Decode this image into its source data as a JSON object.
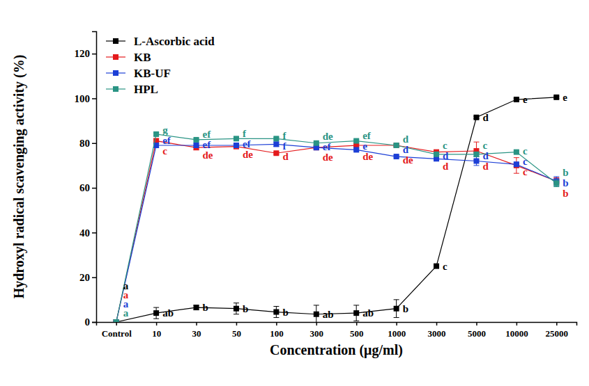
{
  "chart_data": {
    "type": "line",
    "x_label": "Concentration (μg/ml)",
    "y_label": "Hydroxyl radical scavenging activity (%)",
    "categories": [
      "Control",
      "10",
      "30",
      "50",
      "100",
      "300",
      "500",
      "1000",
      "3000",
      "5000",
      "10000",
      "25000"
    ],
    "ylim": [
      0,
      130
    ],
    "yticks": [
      0,
      20,
      40,
      60,
      80,
      100,
      120
    ],
    "grid": false,
    "legend": "upper left",
    "marker": "square",
    "series": [
      {
        "name": "L-Ascorbic acid",
        "color": "#000000",
        "values": [
          0,
          4,
          6.5,
          6,
          4.5,
          3.5,
          4,
          6,
          25,
          91.5,
          99.5,
          100.5
        ],
        "errors": [
          0,
          2.5,
          1,
          2.5,
          2.5,
          4,
          3.5,
          4,
          0.5,
          0.5,
          0.5,
          0.5
        ],
        "annotations": [
          "a",
          "ab",
          "b",
          "b",
          "b",
          "ab",
          "ab",
          "b",
          "c",
          "d",
          "e",
          "e"
        ]
      },
      {
        "name": "KB",
        "color": "#e41a1c",
        "values": [
          0,
          81,
          78,
          78.5,
          75.5,
          78,
          79,
          79,
          76,
          76.5,
          70,
          63
        ],
        "errors": [
          0,
          1,
          1,
          1,
          0.5,
          0.5,
          0.5,
          0.5,
          0.5,
          4,
          3.5,
          1.5
        ],
        "annotations": [
          "a",
          "c",
          "de",
          "de",
          "d",
          "de",
          "de",
          "de",
          "d",
          "d",
          "c",
          "b"
        ]
      },
      {
        "name": "KB-UF",
        "color": "#1c3fd6",
        "values": [
          0,
          79,
          79,
          79,
          79.5,
          78,
          77,
          74,
          73,
          72,
          70.5,
          63
        ],
        "errors": [
          0,
          1,
          1,
          1,
          1,
          0.5,
          0.5,
          0.5,
          0.5,
          2,
          1,
          2
        ],
        "annotations": [
          "a",
          "ef",
          "ef",
          "ef",
          "f",
          "ef",
          "e",
          "d",
          "d",
          "d",
          "c",
          "b"
        ]
      },
      {
        "name": "HPL",
        "color": "#2a9484",
        "values": [
          0,
          84,
          81.5,
          82,
          82,
          80,
          81,
          79,
          75,
          75,
          76,
          62
        ],
        "errors": [
          0,
          0.5,
          0.5,
          0.5,
          0.5,
          0.5,
          0.5,
          0.5,
          0.5,
          1,
          0.5,
          1.5
        ],
        "annotations": [
          "a",
          "g",
          "ef",
          "f",
          "f",
          "de",
          "ef",
          "d",
          "c",
          "c",
          "c",
          "b"
        ]
      }
    ]
  }
}
